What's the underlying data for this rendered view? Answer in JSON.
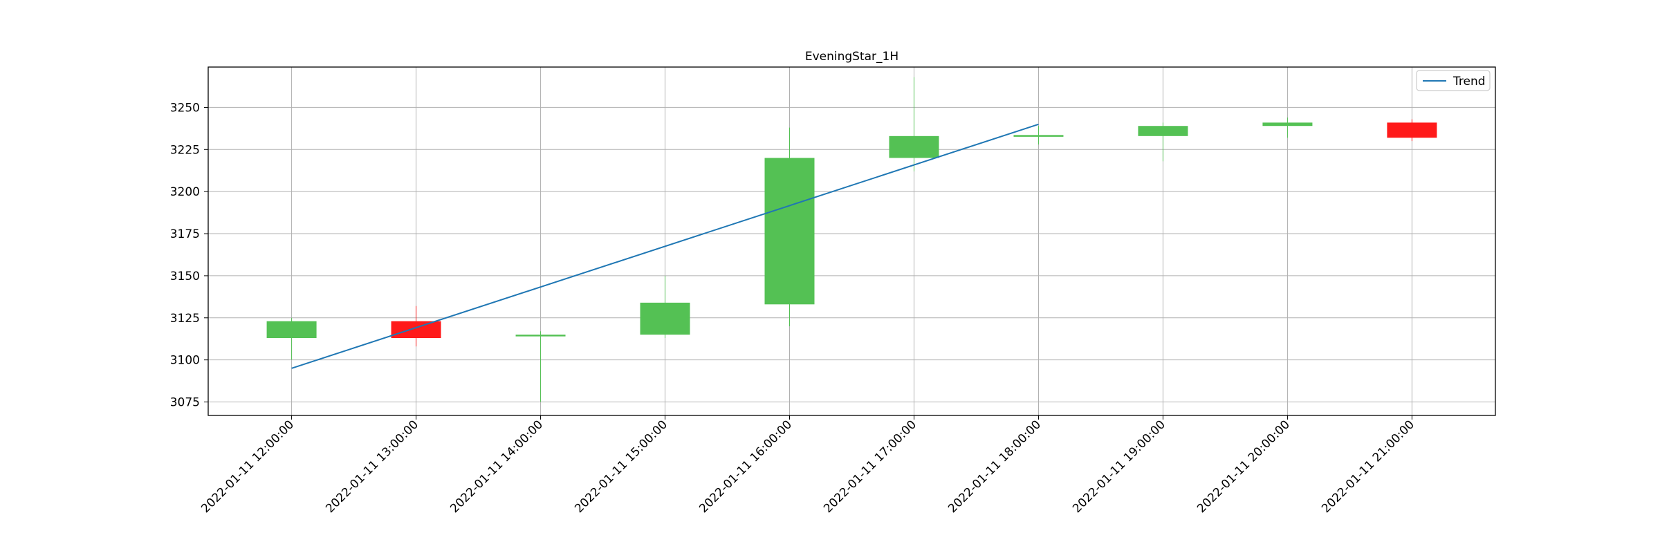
{
  "chart_data": {
    "type": "candlestick",
    "title": "EveningStar_1H",
    "xlabel": "",
    "ylabel": "",
    "categories": [
      "2022-01-11 12:00:00",
      "2022-01-11 13:00:00",
      "2022-01-11 14:00:00",
      "2022-01-11 15:00:00",
      "2022-01-11 16:00:00",
      "2022-01-11 17:00:00",
      "2022-01-11 18:00:00",
      "2022-01-11 19:00:00",
      "2022-01-11 20:00:00",
      "2022-01-11 21:00:00"
    ],
    "candles": [
      {
        "open": 3113,
        "close": 3123,
        "high": 3125,
        "low": 3100
      },
      {
        "open": 3123,
        "close": 3113,
        "high": 3132,
        "low": 3108
      },
      {
        "open": 3114,
        "close": 3115,
        "high": 3117,
        "low": 3075
      },
      {
        "open": 3115,
        "close": 3134,
        "high": 3150,
        "low": 3113
      },
      {
        "open": 3133,
        "close": 3220,
        "high": 3238,
        "low": 3120
      },
      {
        "open": 3220,
        "close": 3233,
        "high": 3268,
        "low": 3212
      },
      {
        "open": 3233,
        "close": 3233.6,
        "high": 3239,
        "low": 3228
      },
      {
        "open": 3233,
        "close": 3239,
        "high": 3241,
        "low": 3218
      },
      {
        "open": 3239,
        "close": 3241,
        "high": 3244,
        "low": 3232
      },
      {
        "open": 3241,
        "close": 3232,
        "high": 3243,
        "low": 3230
      }
    ],
    "series": [
      {
        "name": "Trend",
        "points": [
          [
            0,
            3095
          ],
          [
            6,
            3240
          ]
        ],
        "color": "#1f77b4"
      }
    ],
    "yticks": [
      3075,
      3100,
      3125,
      3150,
      3175,
      3200,
      3225,
      3250
    ],
    "ylim": [
      3067,
      3274
    ],
    "xlim": [
      -0.67,
      9.67
    ],
    "grid": true,
    "legend_position": "top-right",
    "colors": {
      "up": "#54c154",
      "down": "#ff1a1a",
      "grid": "#b0b0b0",
      "axis": "#000000"
    }
  }
}
